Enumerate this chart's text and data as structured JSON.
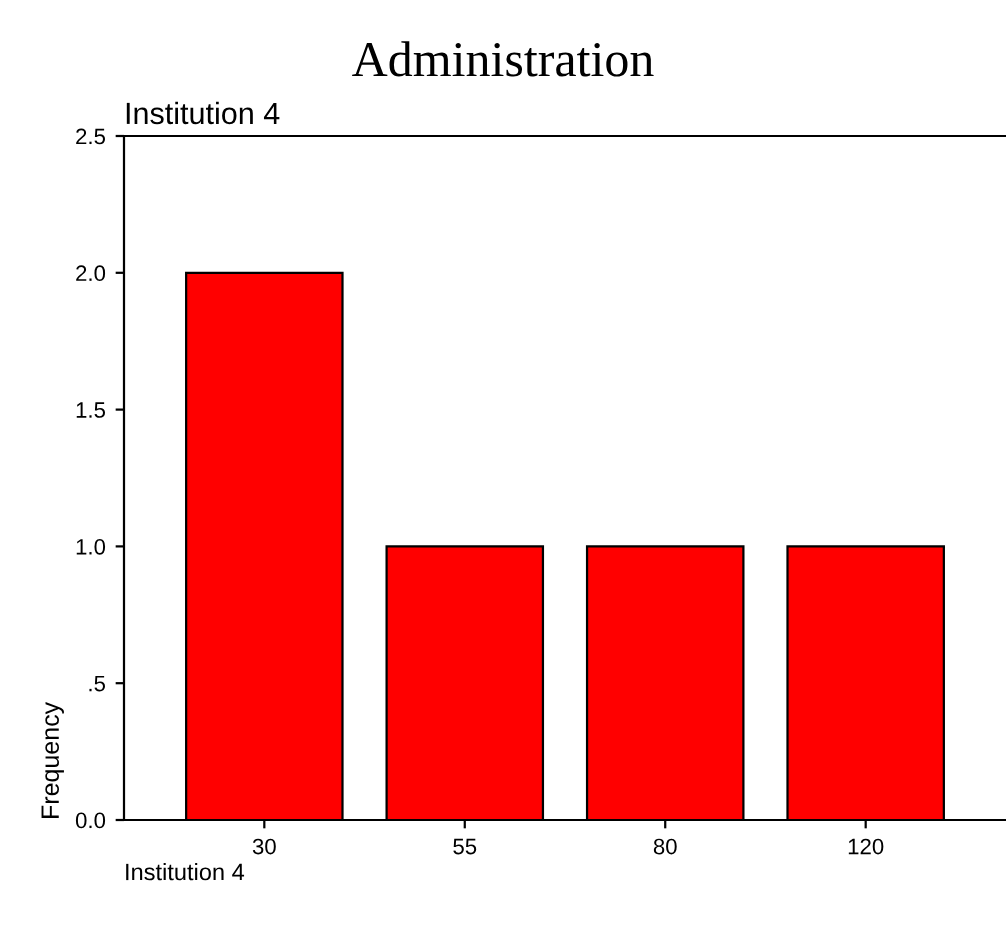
{
  "chart_data": {
    "type": "bar",
    "title": "Administration",
    "subtitle": "Institution 4",
    "xlabel": "Institution 4",
    "ylabel": "Frequency",
    "categories": [
      "30",
      "55",
      "80",
      "120"
    ],
    "values": [
      2,
      1,
      1,
      1
    ],
    "color": "#ff0000",
    "ylim": [
      0,
      2.5
    ],
    "yticks": [
      {
        "value": 0,
        "label": "0.0"
      },
      {
        "value": 0.5,
        "label": ".5"
      },
      {
        "value": 1,
        "label": "1.0"
      },
      {
        "value": 1.5,
        "label": "1.5"
      },
      {
        "value": 2,
        "label": "2.0"
      },
      {
        "value": 2.5,
        "label": "2.5"
      }
    ],
    "grid": false,
    "legend": false
  }
}
